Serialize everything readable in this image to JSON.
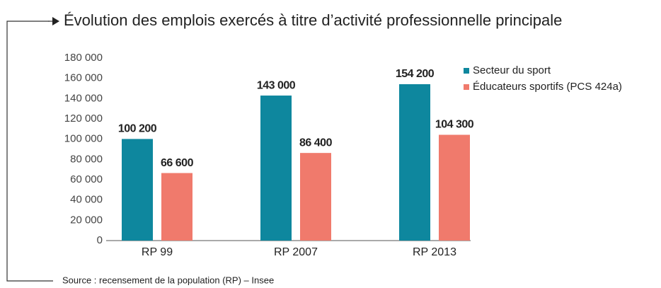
{
  "chart_data": {
    "type": "bar",
    "title": "Évolution des emplois exercés à titre d’activité professionnelle principale",
    "source": "Source : recensement de la population (RP) – Insee",
    "categories": [
      "RP 99",
      "RP 2007",
      "RP 2013"
    ],
    "series": [
      {
        "name": "Secteur du sport",
        "color": "#0e879e",
        "values": [
          100200,
          143000,
          154200
        ],
        "value_labels": [
          "100 200",
          "143 000",
          "154 200"
        ]
      },
      {
        "name": "Éducateurs sportifs (PCS 424a)",
        "color": "#f07a6c",
        "values": [
          66600,
          86400,
          104300
        ],
        "value_labels": [
          "66 600",
          "86 400",
          "104 300"
        ]
      }
    ],
    "ylim": [
      0,
      180000
    ],
    "yticks": [
      0,
      {
        "value": 20000,
        "label": "20 000"
      },
      {
        "value": 40000,
        "label": "40 000"
      },
      {
        "value": 60000,
        "label": "60 000"
      },
      {
        "value": 80000,
        "label": "80 000"
      },
      {
        "value": 100000,
        "label": "100 000"
      },
      {
        "value": 120000,
        "label": "120 000"
      },
      {
        "value": 140000,
        "label": "140 000"
      },
      {
        "value": 160000,
        "label": "160 000"
      },
      {
        "value": 180000,
        "label": "180 000"
      }
    ],
    "grid": false,
    "legend": "top-right"
  }
}
